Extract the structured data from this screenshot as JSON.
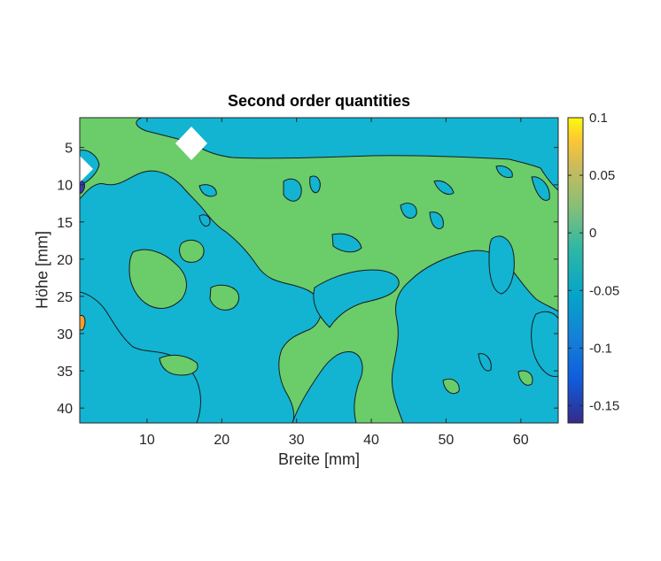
{
  "chart_data": {
    "type": "contourf",
    "title": "Second order quantities",
    "xlabel": "Breite [mm]",
    "ylabel": "Höhe [mm]",
    "xlim": [
      1,
      65
    ],
    "ylim": [
      1,
      42
    ],
    "y_reversed": true,
    "xticks": [
      10,
      20,
      30,
      40,
      50,
      60
    ],
    "yticks": [
      5,
      10,
      15,
      20,
      25,
      30,
      35,
      40
    ],
    "colorbar": {
      "range": [
        -0.165,
        0.1
      ],
      "ticks": [
        0.1,
        0.05,
        0,
        -0.05,
        -0.1,
        -0.15
      ],
      "tick_labels": [
        "0.1",
        "0.05",
        "0",
        "-0.05",
        "-0.1",
        "-0.15"
      ],
      "colormap": "parula"
    },
    "level_colors": {
      "above_zero": "#6acd6a",
      "between_-0.05_and_0": "#12b4d2",
      "near_0.05": "#f0a030",
      "below_-0.15": "#3b3bb4"
    },
    "dominant_regions": [
      {
        "description": "band",
        "level": "between_-0.05_and_0",
        "x": [
          9,
          65
        ],
        "y": [
          3,
          7
        ]
      },
      {
        "description": "left block",
        "level": "between_-0.05_and_0",
        "x": [
          1,
          28
        ],
        "y": [
          14,
          42
        ]
      },
      {
        "description": "right block",
        "level": "between_-0.05_and_0",
        "x": [
          37,
          65
        ],
        "y": [
          22,
          41
        ]
      }
    ],
    "missing_markers": [
      {
        "x": 16,
        "y": 4.5
      },
      {
        "x": 1,
        "y": 8
      }
    ]
  }
}
